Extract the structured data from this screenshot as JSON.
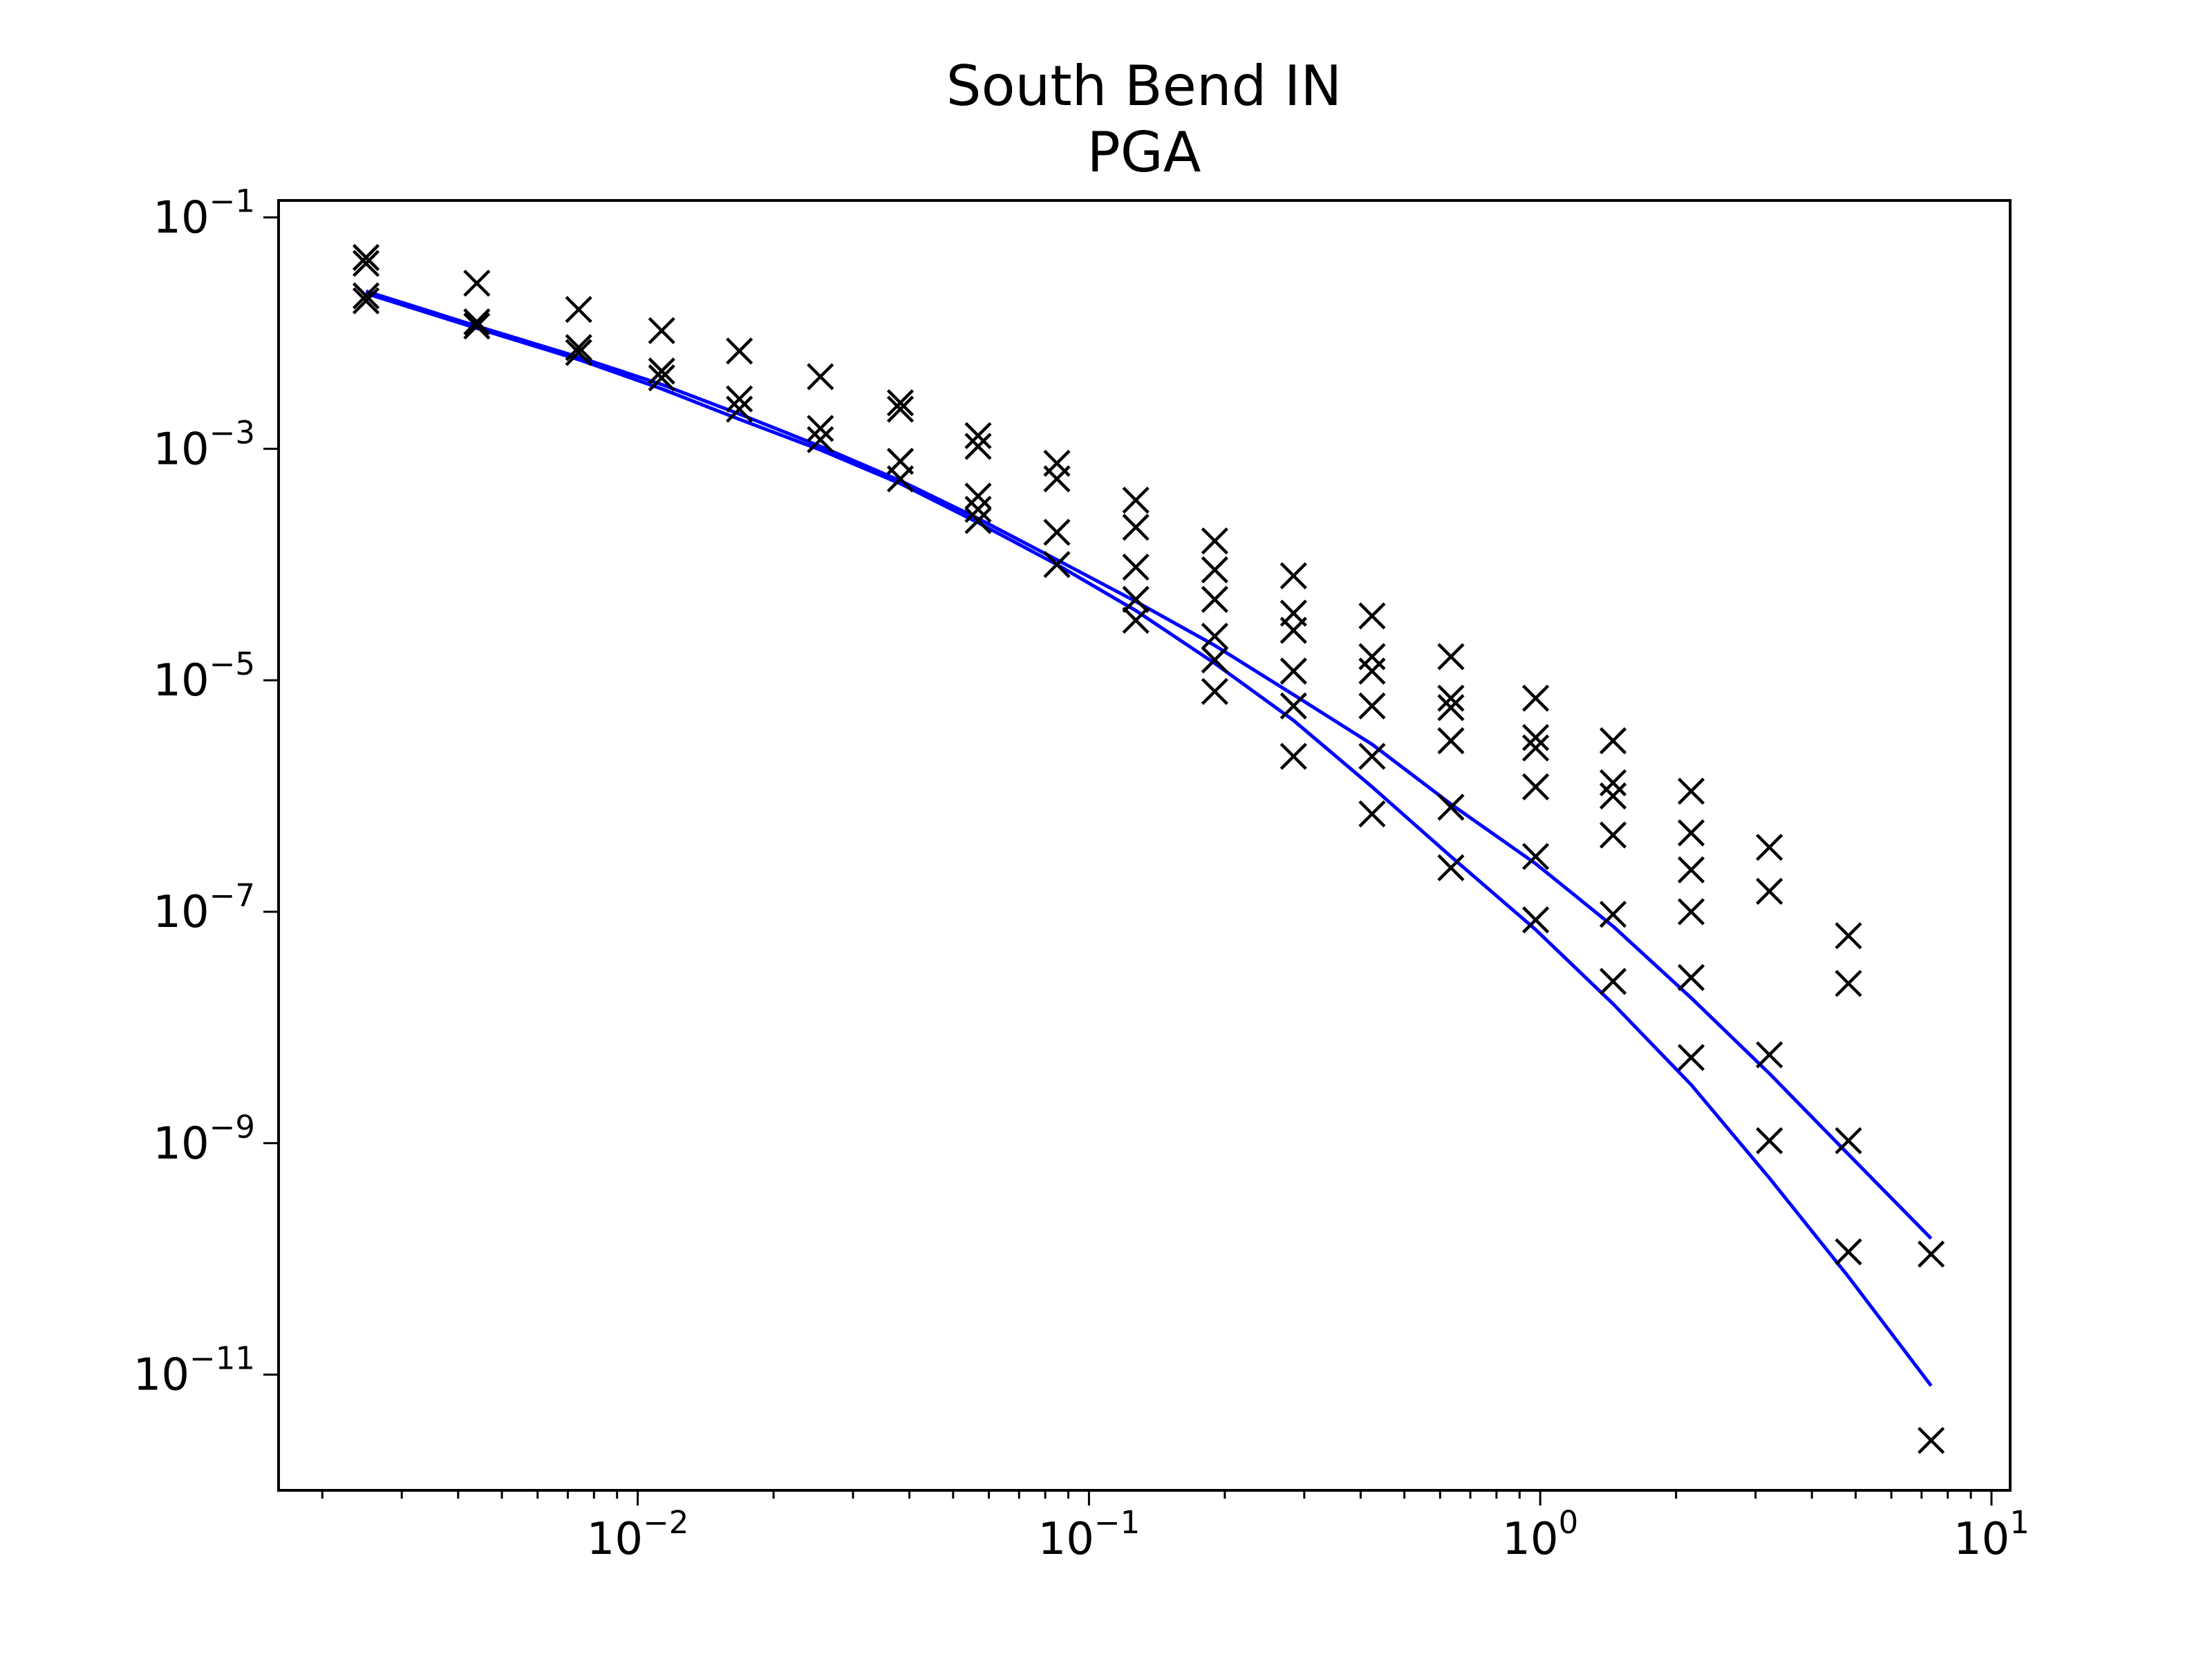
{
  "chart_data": {
    "type": "scatter",
    "title": "South Bend IN",
    "subtitle": "PGA",
    "xlabel": "",
    "ylabel": "",
    "xscale": "log",
    "yscale": "log",
    "xlim": [
      0.0016,
      11
    ],
    "ylim": [
      1e-12,
      0.14
    ],
    "grid": false,
    "x_tick_labels": [
      {
        "value": 0.01,
        "base": "10",
        "exp": "−2"
      },
      {
        "value": 0.1,
        "base": "10",
        "exp": "−1"
      },
      {
        "value": 1,
        "base": "10",
        "exp": "0"
      },
      {
        "value": 10,
        "base": "10",
        "exp": "1"
      }
    ],
    "y_tick_labels": [
      {
        "value": 0.1,
        "base": "10",
        "exp": "−1"
      },
      {
        "value": 0.001,
        "base": "10",
        "exp": "−3"
      },
      {
        "value": 1e-05,
        "base": "10",
        "exp": "−5"
      },
      {
        "value": 1e-07,
        "base": "10",
        "exp": "−7"
      },
      {
        "value": 1e-09,
        "base": "10",
        "exp": "−9"
      },
      {
        "value": 1e-11,
        "base": "10",
        "exp": "−11"
      }
    ],
    "series": [
      {
        "marker": "x",
        "color": "#000000",
        "points": [
          [
            0.0025,
            0.045
          ],
          [
            0.0025,
            0.04
          ],
          [
            0.0025,
            0.021
          ],
          [
            0.0025,
            0.019
          ],
          [
            0.0044,
            0.027
          ],
          [
            0.0044,
            0.0125
          ],
          [
            0.0044,
            0.0115
          ],
          [
            0.0074,
            0.016
          ],
          [
            0.0074,
            0.0075
          ],
          [
            0.0074,
            0.0068
          ],
          [
            0.0113,
            0.0105
          ],
          [
            0.0113,
            0.0047
          ],
          [
            0.0113,
            0.0041
          ],
          [
            0.0168,
            0.007
          ],
          [
            0.0168,
            0.0027
          ],
          [
            0.0168,
            0.0022
          ],
          [
            0.0254,
            0.0042
          ],
          [
            0.0254,
            0.0015
          ],
          [
            0.0254,
            0.0012
          ],
          [
            0.0382,
            0.0025
          ],
          [
            0.0382,
            0.0022
          ],
          [
            0.0382,
            0.00078
          ],
          [
            0.0382,
            0.00055
          ],
          [
            0.0568,
            0.0013
          ],
          [
            0.0568,
            0.00105
          ],
          [
            0.0568,
            0.00039
          ],
          [
            0.0568,
            0.0003
          ],
          [
            0.0568,
            0.00024
          ],
          [
            0.0849,
            0.00075
          ],
          [
            0.0849,
            0.00055
          ],
          [
            0.0849,
            0.00019
          ],
          [
            0.0849,
            0.0001
          ],
          [
            0.127,
            0.00036
          ],
          [
            0.127,
            0.00021
          ],
          [
            0.127,
            9.5e-05
          ],
          [
            0.127,
            5e-05
          ],
          [
            0.127,
            3.3e-05
          ],
          [
            0.19,
            0.00016
          ],
          [
            0.19,
            9e-05
          ],
          [
            0.19,
            5e-05
          ],
          [
            0.19,
            2.4e-05
          ],
          [
            0.19,
            1.5e-05
          ],
          [
            0.19,
            8e-06
          ],
          [
            0.284,
            8e-05
          ],
          [
            0.284,
            3.8e-05
          ],
          [
            0.284,
            2.7e-05
          ],
          [
            0.284,
            1.2e-05
          ],
          [
            0.284,
            6e-06
          ],
          [
            0.284,
            2.2e-06
          ],
          [
            0.424,
            3.6e-05
          ],
          [
            0.424,
            1.6e-05
          ],
          [
            0.424,
            1.2e-05
          ],
          [
            0.424,
            6e-06
          ],
          [
            0.424,
            2.2e-06
          ],
          [
            0.424,
            7e-07
          ],
          [
            0.634,
            1.6e-05
          ],
          [
            0.634,
            7e-06
          ],
          [
            0.634,
            5.8e-06
          ],
          [
            0.634,
            3e-06
          ],
          [
            0.634,
            8e-07
          ],
          [
            0.634,
            2.4e-07
          ],
          [
            0.977,
            7e-06
          ],
          [
            0.977,
            3.2e-06
          ],
          [
            0.977,
            2.6e-06
          ],
          [
            0.977,
            1.2e-06
          ],
          [
            0.977,
            3e-07
          ],
          [
            0.977,
            8.5e-08
          ],
          [
            1.45,
            3e-06
          ],
          [
            1.45,
            1.3e-06
          ],
          [
            1.45,
            1e-06
          ],
          [
            1.45,
            4.6e-07
          ],
          [
            1.45,
            9.5e-08
          ],
          [
            1.45,
            2.5e-08
          ],
          [
            2.16,
            1.1e-06
          ],
          [
            2.16,
            4.8e-07
          ],
          [
            2.16,
            2.3e-07
          ],
          [
            2.16,
            1e-07
          ],
          [
            2.16,
            2.7e-08
          ],
          [
            2.16,
            5.5e-09
          ],
          [
            3.22,
            3.6e-07
          ],
          [
            3.22,
            1.5e-07
          ],
          [
            3.22,
            5.8e-09
          ],
          [
            3.22,
            1.05e-09
          ],
          [
            4.82,
            6.2e-08
          ],
          [
            4.82,
            2.4e-08
          ],
          [
            4.82,
            1.05e-09
          ],
          [
            4.82,
            1.15e-10
          ],
          [
            7.35,
            1.1e-10
          ],
          [
            7.35,
            2.7e-12
          ]
        ]
      },
      {
        "marker": "line",
        "color": "#0000ff",
        "x": [
          0.0025,
          0.0044,
          0.0074,
          0.0113,
          0.0168,
          0.0254,
          0.0382,
          0.0568,
          0.0849,
          0.127,
          0.19,
          0.284,
          0.424,
          0.634,
          0.977,
          1.45,
          2.16,
          3.22,
          4.82,
          7.35
        ],
        "y": [
          0.023,
          0.0115,
          0.0062,
          0.0036,
          0.002,
          0.00105,
          0.00053,
          0.00025,
          0.00011,
          4.8e-05,
          2e-05,
          7.5e-06,
          2.8e-06,
          8.5e-07,
          2.6e-07,
          7.5e-08,
          1.8e-08,
          4e-09,
          8e-10,
          1.5e-10
        ]
      },
      {
        "marker": "line",
        "color": "#0000ff",
        "x": [
          0.0025,
          0.0044,
          0.0074,
          0.0113,
          0.0168,
          0.0254,
          0.0382,
          0.0568,
          0.0849,
          0.127,
          0.19,
          0.284,
          0.424,
          0.634,
          0.977,
          1.45,
          2.16,
          3.22,
          4.82,
          7.35
        ],
        "y": [
          0.022,
          0.011,
          0.0059,
          0.0033,
          0.0018,
          0.00098,
          0.0005,
          0.00023,
          0.0001,
          4e-05,
          1.4e-05,
          4.5e-06,
          1.2e-06,
          3e-07,
          7e-08,
          1.6e-08,
          3.2e-09,
          5e-10,
          7e-11,
          8e-12
        ]
      }
    ]
  }
}
